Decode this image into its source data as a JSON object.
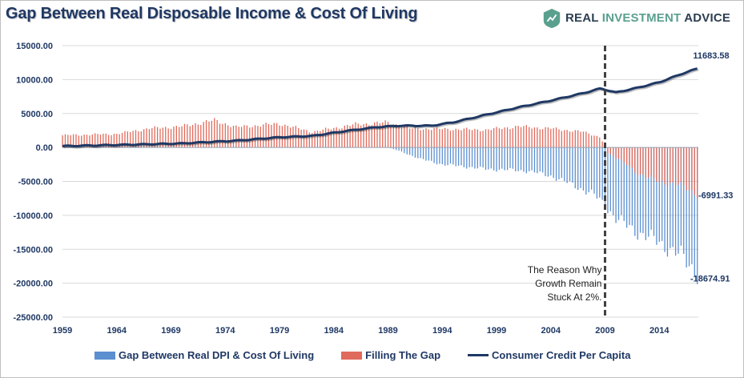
{
  "header": {
    "title": "Gap Between Real Disposable Income & Cost Of Living",
    "brand_prefix": "REAL ",
    "brand_accent": "INVESTMENT",
    "brand_suffix": " ADVICE",
    "brand_icon": "bull-chart-logo-icon"
  },
  "colors": {
    "gap": "#5b8fd0",
    "filling": "#e06a5b",
    "line": "#1f3864",
    "axis_text": "#1f3864",
    "brand_green": "#5aa08e"
  },
  "chart_data": {
    "type": "bar",
    "title": "Gap Between Real Disposable Income & Cost Of Living",
    "x_range": [
      1959,
      2017.6
    ],
    "x_ticks": [
      "1959",
      "1964",
      "1969",
      "1974",
      "1979",
      "1984",
      "1989",
      "1994",
      "1999",
      "2004",
      "2009",
      "2014"
    ],
    "ylim": [
      -25000,
      15000
    ],
    "y_ticks": [
      "15000.00",
      "10000.00",
      "5000.00",
      "0.00",
      "-5000.00",
      "-10000.00",
      "-15000.00",
      "-20000.00",
      "-25000.00"
    ],
    "grid": "horizontal",
    "legend_position": "bottom",
    "series": [
      {
        "name": "Gap Between Real DPI & Cost Of Living",
        "kind": "bar",
        "points": [
          [
            1959,
            0
          ],
          [
            1989,
            0
          ],
          [
            1990,
            -500
          ],
          [
            1992,
            -1700
          ],
          [
            1994,
            -2500
          ],
          [
            1996,
            -2800
          ],
          [
            1998,
            -3200
          ],
          [
            2000,
            -3300
          ],
          [
            2002,
            -3500
          ],
          [
            2004,
            -4200
          ],
          [
            2006,
            -5500
          ],
          [
            2008,
            -7000
          ],
          [
            2009,
            -8500
          ],
          [
            2010,
            -10500
          ],
          [
            2012,
            -12500
          ],
          [
            2014,
            -14000
          ],
          [
            2016,
            -16000
          ],
          [
            2017.6,
            -18674.91
          ]
        ]
      },
      {
        "name": "Filling The Gap",
        "kind": "bar",
        "points": [
          [
            1959,
            1800
          ],
          [
            1964,
            2000
          ],
          [
            1967,
            2800
          ],
          [
            1970,
            3100
          ],
          [
            1973,
            4000
          ],
          [
            1975,
            3000
          ],
          [
            1979,
            3500
          ],
          [
            1982,
            2300
          ],
          [
            1986,
            3400
          ],
          [
            1989,
            3700
          ],
          [
            1991,
            2800
          ],
          [
            1995,
            2700
          ],
          [
            1998,
            2600
          ],
          [
            2001,
            3100
          ],
          [
            2004,
            2800
          ],
          [
            2007,
            2300
          ],
          [
            2008.6,
            1500
          ],
          [
            2009.2,
            -700
          ],
          [
            2010,
            -1500
          ],
          [
            2011,
            -2500
          ],
          [
            2012,
            -3800
          ],
          [
            2013,
            -4500
          ],
          [
            2014,
            -5000
          ],
          [
            2016,
            -5600
          ],
          [
            2017.6,
            -6991.33
          ]
        ]
      },
      {
        "name": "Consumer Credit Per Capita",
        "kind": "line",
        "points": [
          [
            1959,
            200
          ],
          [
            1965,
            400
          ],
          [
            1970,
            600
          ],
          [
            1975,
            1000
          ],
          [
            1979,
            1500
          ],
          [
            1982,
            1700
          ],
          [
            1985,
            2400
          ],
          [
            1988,
            3000
          ],
          [
            1990,
            3200
          ],
          [
            1993,
            3200
          ],
          [
            1995,
            3700
          ],
          [
            1998,
            4800
          ],
          [
            2001,
            5900
          ],
          [
            2004,
            6900
          ],
          [
            2007,
            8000
          ],
          [
            2008.6,
            8700
          ],
          [
            2010,
            8100
          ],
          [
            2012,
            8800
          ],
          [
            2014,
            9600
          ],
          [
            2016,
            10800
          ],
          [
            2017.6,
            11683.58
          ]
        ]
      }
    ],
    "data_labels": {
      "line_end": "11683.58",
      "filling_end": "-6991.33",
      "gap_end": "-18674.91"
    },
    "annotation": {
      "lines": [
        "The Reason Why",
        "Growth Remain",
        "Stuck At 2%."
      ],
      "x": 2009
    }
  }
}
